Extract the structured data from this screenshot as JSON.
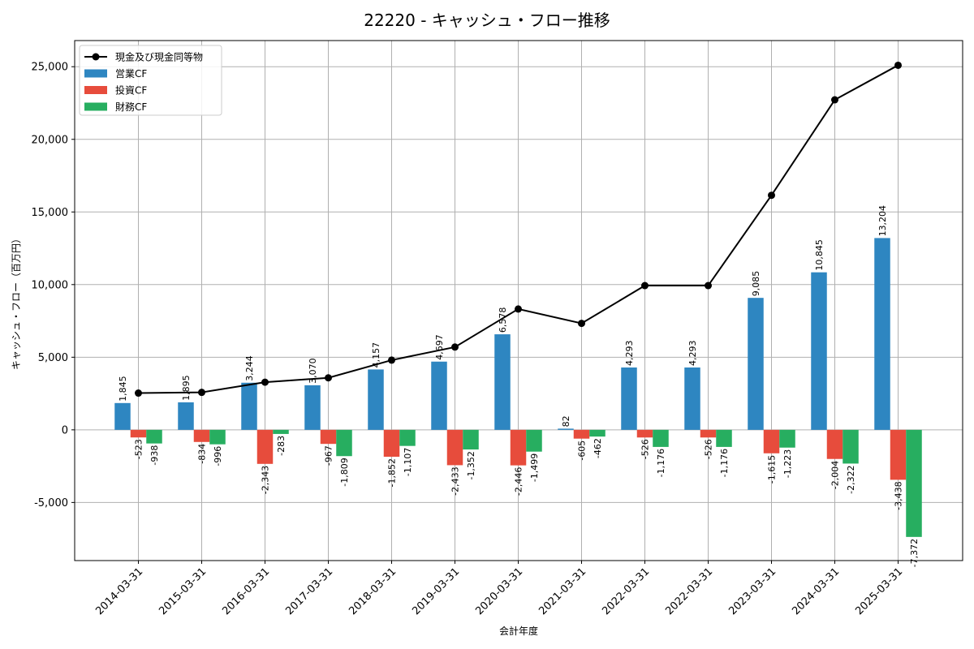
{
  "chart_data": {
    "type": "bar",
    "title": "22220 - キャッシュ・フロー推移",
    "xlabel": "会計年度",
    "ylabel": "キャッシュ・フロー（百万円）",
    "ylim": [
      -9000,
      26800
    ],
    "yticks": [
      -5000,
      0,
      5000,
      10000,
      15000,
      20000,
      25000
    ],
    "ytick_labels": [
      "-5,000",
      "0",
      "5,000",
      "10,000",
      "15,000",
      "20,000",
      "25,000"
    ],
    "grid": true,
    "legend_position": "top-left",
    "categories": [
      "2014-03-31",
      "2015-03-31",
      "2016-03-31",
      "2017-03-31",
      "2018-03-31",
      "2019-03-31",
      "2020-03-31",
      "2021-03-31",
      "2022-03-31",
      "2022-03-31",
      "2023-03-31",
      "2024-03-31",
      "2025-03-31"
    ],
    "series": [
      {
        "name": "営業CF",
        "kind": "bar",
        "color": "#2e86c1",
        "values": [
          1845,
          1895,
          3244,
          3070,
          4157,
          4697,
          6578,
          82,
          4293,
          4293,
          9085,
          10845,
          13204
        ],
        "labels": [
          "1,845",
          "1,895",
          "3,244",
          "3,070",
          "4,157",
          "4,697",
          "6,578",
          "82",
          "4,293",
          "4,293",
          "9,085",
          "10,845",
          "13,204"
        ]
      },
      {
        "name": "投資CF",
        "kind": "bar",
        "color": "#e74c3c",
        "values": [
          -523,
          -834,
          -2343,
          -967,
          -1852,
          -2433,
          -2446,
          -605,
          -526,
          -526,
          -1615,
          -2004,
          -3438
        ],
        "labels": [
          "-523",
          "-834",
          "-2,343",
          "-967",
          "-1,852",
          "-2,433",
          "-2,446",
          "-605",
          "-526",
          "-526",
          "-1,615",
          "-2,004",
          "-3,438"
        ]
      },
      {
        "name": "財務CF",
        "kind": "bar",
        "color": "#27ae60",
        "values": [
          -938,
          -996,
          -283,
          -1809,
          -1107,
          -1352,
          -1499,
          -462,
          -1176,
          -1176,
          -1223,
          -2322,
          -7372
        ],
        "labels": [
          "-938",
          "-996",
          "-283",
          "-1,809",
          "-1,107",
          "-1,352",
          "-1,499",
          "-462",
          "-1,176",
          "-1,176",
          "-1,223",
          "-2,322",
          "-7,372"
        ]
      },
      {
        "name": "現金及び現金同等物",
        "kind": "line",
        "color": "#000000",
        "values": [
          2530,
          2580,
          3280,
          3580,
          4800,
          5700,
          8320,
          7330,
          9930,
          9930,
          16150,
          22720,
          25100
        ]
      }
    ]
  }
}
